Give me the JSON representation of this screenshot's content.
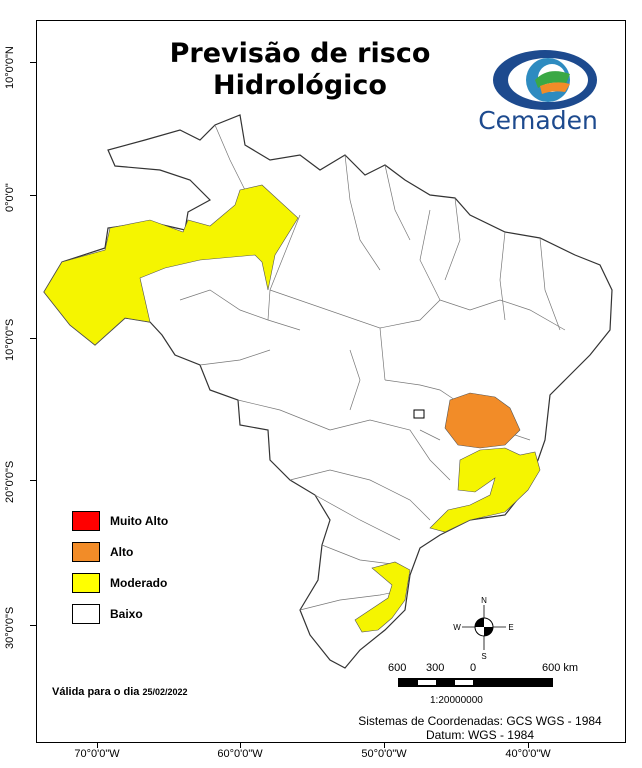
{
  "title_line1": "Previsão de risco",
  "title_line2": "Hidrológico",
  "brand": "Cemaden",
  "latitude_labels": [
    "10°0'0\"N",
    "0°0'0\"",
    "10°0'0\"S",
    "20°0'0\"S",
    "30°0'0\"S"
  ],
  "longitude_labels": [
    "70°0'0\"W",
    "60°0'0\"W",
    "50°0'0\"W",
    "40°0'0\"W"
  ],
  "legend": [
    {
      "label": "Muito Alto",
      "color": "#ff0000"
    },
    {
      "label": "Alto",
      "color": "#f28c28"
    },
    {
      "label": "Moderado",
      "color": "#ffff00"
    },
    {
      "label": "Baixo",
      "color": "#ffffff"
    }
  ],
  "risk_colors": {
    "alto": "#f28c28",
    "moderado": "#f5f500",
    "baixo": "#ffffff"
  },
  "valid_text": "Válida para o dia",
  "valid_date": "25/02/2022",
  "scale": {
    "labels": [
      "600",
      "300",
      "0",
      "600 km"
    ],
    "ratio": "1:20000000"
  },
  "compass": {
    "n": "N",
    "s": "S",
    "e": "E",
    "w": "W"
  },
  "coord_system": "Sistemas de Coordenadas: GCS WGS - 1984",
  "datum": "Datum: WGS - 1984"
}
